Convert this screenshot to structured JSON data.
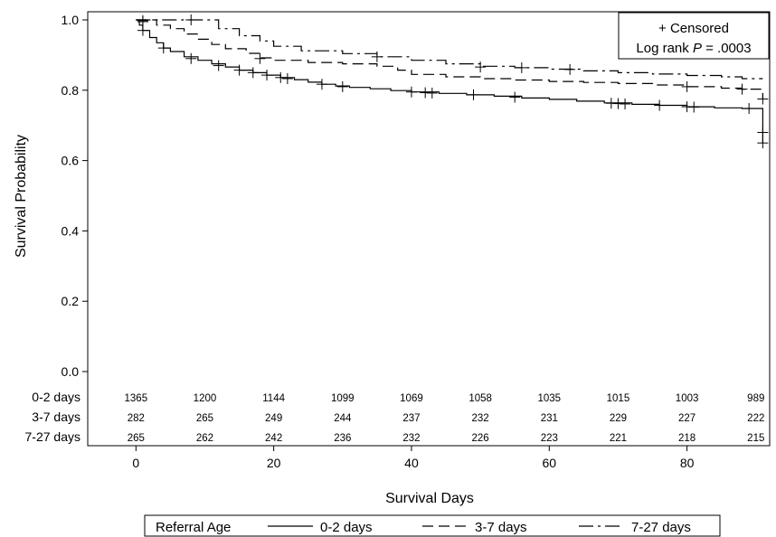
{
  "chart_data": {
    "type": "line",
    "subtype": "kaplan-meier",
    "xlabel": "Survival Days",
    "ylabel": "Survival Probability",
    "xlim": [
      -7,
      92
    ],
    "ylim": [
      0.0,
      1.0
    ],
    "x_ticks": [
      0,
      20,
      40,
      60,
      80
    ],
    "y_ticks": [
      "0.0",
      "0.2",
      "0.4",
      "0.6",
      "0.8",
      "1.0"
    ],
    "grid": false,
    "annotation": {
      "censored_label": "+ Censored",
      "log_rank_prefix": "Log rank ",
      "log_rank_p": "P",
      "log_rank_suffix": " = .0003",
      "placement": "top-right"
    },
    "legend": {
      "title": "Referral Age",
      "placement": "bottom"
    },
    "risk_table": {
      "time_points": [
        0,
        10,
        20,
        30,
        40,
        50,
        60,
        70,
        80,
        90
      ],
      "rows": [
        {
          "label": "0-2 days",
          "values": [
            "1365",
            "1200",
            "1144",
            "1099",
            "1069",
            "1058",
            "1035",
            "1015",
            "1003",
            "989"
          ]
        },
        {
          "label": "3-7 days",
          "values": [
            "282",
            "265",
            "249",
            "244",
            "237",
            "232",
            "231",
            "229",
            "227",
            "222"
          ]
        },
        {
          "label": "7-27 days",
          "values": [
            "265",
            "262",
            "242",
            "236",
            "232",
            "226",
            "223",
            "221",
            "218",
            "215"
          ]
        }
      ]
    },
    "series": [
      {
        "name": "0-2 days",
        "dash": "",
        "points": [
          [
            0,
            1.0
          ],
          [
            0.5,
            0.985
          ],
          [
            1,
            0.97
          ],
          [
            2,
            0.95
          ],
          [
            3,
            0.935
          ],
          [
            4,
            0.92
          ],
          [
            5,
            0.91
          ],
          [
            7,
            0.895
          ],
          [
            9,
            0.885
          ],
          [
            11,
            0.875
          ],
          [
            13,
            0.866
          ],
          [
            15,
            0.857
          ],
          [
            17,
            0.85
          ],
          [
            19,
            0.843
          ],
          [
            21,
            0.836
          ],
          [
            23,
            0.83
          ],
          [
            25,
            0.823
          ],
          [
            27,
            0.817
          ],
          [
            29,
            0.812
          ],
          [
            31,
            0.808
          ],
          [
            34,
            0.804
          ],
          [
            37,
            0.799
          ],
          [
            40,
            0.795
          ],
          [
            44,
            0.791
          ],
          [
            48,
            0.787
          ],
          [
            52,
            0.783
          ],
          [
            56,
            0.778
          ],
          [
            60,
            0.774
          ],
          [
            64,
            0.769
          ],
          [
            68,
            0.764
          ],
          [
            72,
            0.76
          ],
          [
            76,
            0.757
          ],
          [
            80,
            0.753
          ],
          [
            84,
            0.75
          ],
          [
            88,
            0.748
          ],
          [
            90,
            0.748
          ],
          [
            91,
            0.748
          ],
          [
            91,
            0.65
          ]
        ],
        "censored": [
          [
            1,
            0.97
          ],
          [
            4,
            0.92
          ],
          [
            8,
            0.89
          ],
          [
            12,
            0.87
          ],
          [
            15,
            0.857
          ],
          [
            17,
            0.85
          ],
          [
            19,
            0.843
          ],
          [
            21,
            0.836
          ],
          [
            22,
            0.833
          ],
          [
            27,
            0.817
          ],
          [
            30,
            0.81
          ],
          [
            40,
            0.795
          ],
          [
            42,
            0.793
          ],
          [
            43,
            0.792
          ],
          [
            49,
            0.787
          ],
          [
            55,
            0.78
          ],
          [
            69,
            0.763
          ],
          [
            70,
            0.762
          ],
          [
            71,
            0.761
          ],
          [
            76,
            0.757
          ],
          [
            80,
            0.753
          ],
          [
            81,
            0.752
          ],
          [
            89,
            0.748
          ],
          [
            91,
            0.68
          ],
          [
            91,
            0.65
          ]
        ]
      },
      {
        "name": "3-7 days",
        "dash": "12,6",
        "points": [
          [
            0,
            1.0
          ],
          [
            2,
            1.0
          ],
          [
            3,
            0.985
          ],
          [
            5,
            0.975
          ],
          [
            7,
            0.96
          ],
          [
            9,
            0.945
          ],
          [
            11,
            0.93
          ],
          [
            13,
            0.918
          ],
          [
            16,
            0.905
          ],
          [
            18,
            0.892
          ],
          [
            20,
            0.885
          ],
          [
            25,
            0.879
          ],
          [
            30,
            0.875
          ],
          [
            35,
            0.868
          ],
          [
            38,
            0.857
          ],
          [
            40,
            0.845
          ],
          [
            45,
            0.838
          ],
          [
            50,
            0.833
          ],
          [
            55,
            0.829
          ],
          [
            60,
            0.825
          ],
          [
            65,
            0.822
          ],
          [
            70,
            0.819
          ],
          [
            75,
            0.815
          ],
          [
            80,
            0.81
          ],
          [
            85,
            0.806
          ],
          [
            88,
            0.803
          ],
          [
            90,
            0.803
          ],
          [
            91,
            0.803
          ],
          [
            91,
            0.775
          ]
        ],
        "censored": [
          [
            1,
            0.995
          ],
          [
            18,
            0.89
          ],
          [
            80,
            0.81
          ],
          [
            88,
            0.803
          ],
          [
            91,
            0.775
          ]
        ]
      },
      {
        "name": "7-27 days",
        "dash": "16,5,3,5",
        "points": [
          [
            0,
            1.0
          ],
          [
            9,
            1.0
          ],
          [
            12,
            0.975
          ],
          [
            15,
            0.955
          ],
          [
            18,
            0.94
          ],
          [
            20,
            0.925
          ],
          [
            24,
            0.912
          ],
          [
            30,
            0.904
          ],
          [
            35,
            0.895
          ],
          [
            40,
            0.885
          ],
          [
            45,
            0.875
          ],
          [
            50,
            0.868
          ],
          [
            55,
            0.864
          ],
          [
            60,
            0.86
          ],
          [
            65,
            0.855
          ],
          [
            70,
            0.85
          ],
          [
            75,
            0.846
          ],
          [
            80,
            0.842
          ],
          [
            85,
            0.838
          ],
          [
            88,
            0.833
          ],
          [
            91,
            0.833
          ]
        ],
        "censored": [
          [
            1,
            0.998
          ],
          [
            8,
            1.0
          ],
          [
            35,
            0.895
          ],
          [
            50,
            0.866
          ],
          [
            56,
            0.864
          ],
          [
            63,
            0.859
          ]
        ]
      }
    ]
  }
}
